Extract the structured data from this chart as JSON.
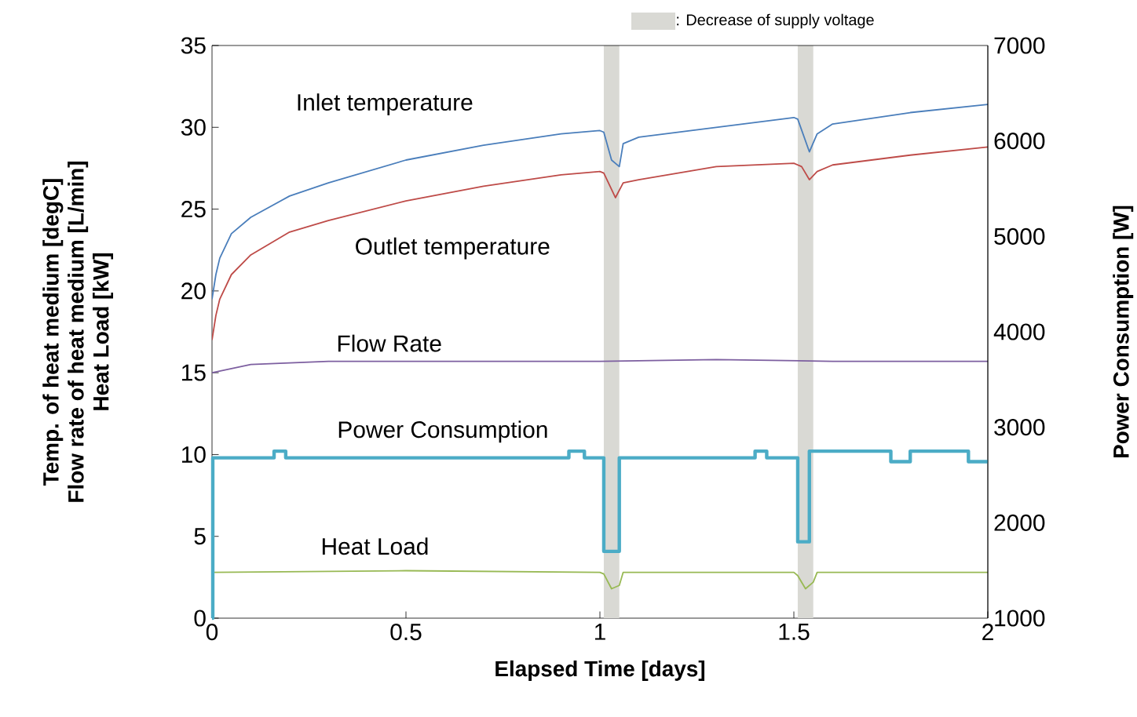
{
  "chart_data": {
    "type": "line",
    "xlabel": "Elapsed Time [days]",
    "ylabel": "Temp. of heat medium [degC]\nFlow rate of heat medium [L/min]\nHeat Load [kW]",
    "y2label": "Power Consumption [W]",
    "xlim": [
      0,
      2
    ],
    "xticks": [
      0,
      0.5,
      1,
      1.5,
      2
    ],
    "ylim": [
      0,
      35
    ],
    "yticks": [
      0,
      5,
      10,
      15,
      20,
      25,
      30,
      35
    ],
    "y2lim": [
      1000,
      7000
    ],
    "y2ticks": [
      1000,
      2000,
      3000,
      4000,
      5000,
      6000,
      7000
    ],
    "bands": [
      {
        "axis": "x",
        "from": 1.01,
        "to": 1.05,
        "label": ": Decrease of supply voltage",
        "color": "#d9d9d4"
      },
      {
        "axis": "x",
        "from": 1.51,
        "to": 1.55,
        "color": "#d9d9d4"
      }
    ],
    "series": [
      {
        "name": "Inlet temperature",
        "color": "#4a7ebb",
        "x": [
          0,
          0.01,
          0.02,
          0.05,
          0.1,
          0.2,
          0.3,
          0.5,
          0.7,
          0.9,
          1.0,
          1.01,
          1.03,
          1.05,
          1.06,
          1.1,
          1.3,
          1.5,
          1.51,
          1.54,
          1.56,
          1.6,
          1.8,
          2.0
        ],
        "values": [
          19.5,
          21,
          22,
          23.5,
          24.5,
          25.8,
          26.6,
          28,
          28.9,
          29.6,
          29.8,
          29.7,
          28,
          27.6,
          29,
          29.4,
          30,
          30.6,
          30.5,
          28.5,
          29.6,
          30.2,
          30.9,
          31.4
        ]
      },
      {
        "name": "Outlet temperature",
        "color": "#be4b48",
        "x": [
          0,
          0.01,
          0.02,
          0.05,
          0.1,
          0.2,
          0.3,
          0.5,
          0.7,
          0.9,
          1.0,
          1.01,
          1.04,
          1.06,
          1.1,
          1.3,
          1.5,
          1.52,
          1.54,
          1.56,
          1.6,
          1.8,
          2.0
        ],
        "values": [
          17,
          18.5,
          19.5,
          21,
          22.2,
          23.6,
          24.3,
          25.5,
          26.4,
          27.1,
          27.3,
          27.2,
          25.7,
          26.6,
          26.8,
          27.6,
          27.8,
          27.6,
          26.8,
          27.3,
          27.7,
          28.3,
          28.8
        ]
      },
      {
        "name": "Flow Rate",
        "color": "#7d5fa0",
        "x": [
          0,
          0.1,
          0.3,
          0.6,
          1.0,
          1.3,
          1.6,
          2.0
        ],
        "values": [
          15.0,
          15.5,
          15.7,
          15.7,
          15.7,
          15.8,
          15.7,
          15.7
        ]
      },
      {
        "name": "Power Consumption",
        "color": "#4bacc6",
        "type": "step",
        "axis": "y2",
        "x": [
          0,
          0.002,
          0.16,
          0.19,
          0.92,
          0.96,
          1.01,
          1.05,
          1.4,
          1.43,
          1.51,
          1.54,
          1.75,
          1.8,
          1.95,
          2.0
        ],
        "values": [
          1000,
          2680,
          2750,
          2680,
          2750,
          2680,
          1700,
          2680,
          2750,
          2680,
          1800,
          2750,
          2640,
          2750,
          2640,
          2640
        ]
      },
      {
        "name": "Heat Load",
        "color": "#98b954",
        "x": [
          0,
          0.5,
          1.0,
          1.01,
          1.03,
          1.05,
          1.06,
          1.5,
          1.51,
          1.53,
          1.55,
          1.56,
          2.0
        ],
        "values": [
          2.8,
          2.9,
          2.8,
          2.7,
          1.8,
          2.0,
          2.8,
          2.8,
          2.6,
          1.8,
          2.2,
          2.8,
          2.8
        ]
      }
    ]
  }
}
